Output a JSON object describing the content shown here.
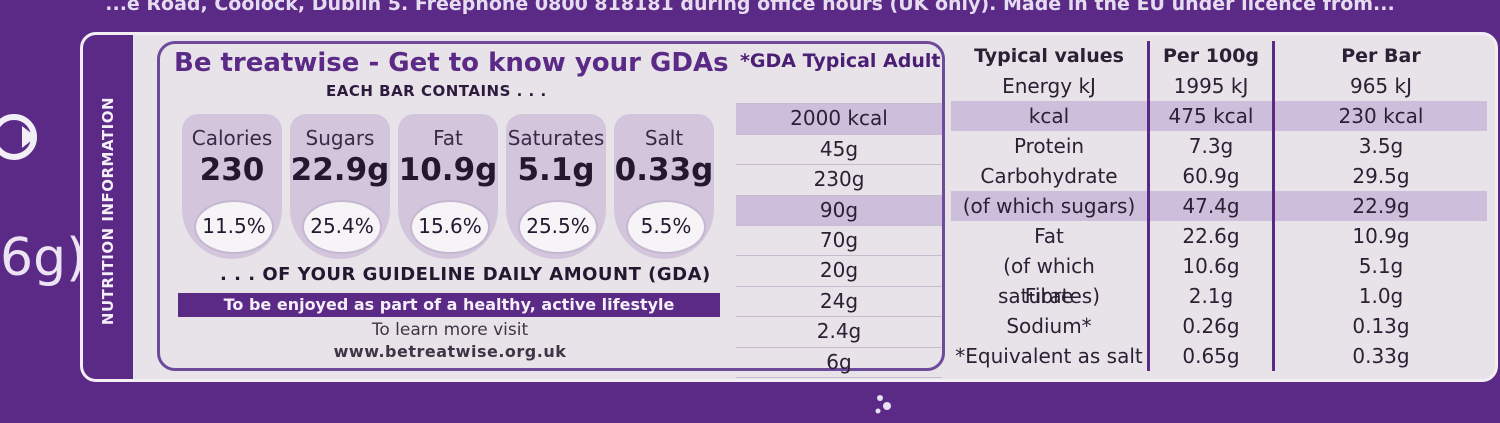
{
  "top_text": "...e Road, Coolock, Dublin 5. Freephone 0800 818181 during office hours (UK only). Made in the EU under licence from...",
  "left_weight": "6g)",
  "side_label": "NUTRITION INFORMATION",
  "gda": {
    "title": "Be treatwise - Get to know your GDAs",
    "header": "*GDA Typical Adult",
    "each_bar": "EACH BAR CONTAINS . . .",
    "drops": [
      {
        "label": "Calories",
        "value": "230",
        "pct": "11.5%"
      },
      {
        "label": "Sugars",
        "value": "22.9g",
        "pct": "25.4%"
      },
      {
        "label": "Fat",
        "value": "10.9g",
        "pct": "15.6%"
      },
      {
        "label": "Saturates",
        "value": "5.1g",
        "pct": "25.5%"
      },
      {
        "label": "Salt",
        "value": "0.33g",
        "pct": "5.5%"
      }
    ],
    "guideline": ". . . OF YOUR GUIDELINE DAILY AMOUNT (GDA)",
    "enjoy": "To be enjoyed as part of a healthy, active lifestyle",
    "learn": "To learn more visit",
    "website": "www.betreatwise.org.uk",
    "values": [
      "",
      "2000 kcal",
      "45g",
      "230g",
      "90g",
      "70g",
      "20g",
      "24g",
      "2.4g",
      "6g"
    ]
  },
  "nutrition": {
    "headers": [
      "Typical values",
      "Per 100g",
      "Per Bar"
    ],
    "rows": [
      [
        "Energy kJ",
        "1995 kJ",
        "965 kJ"
      ],
      [
        "kcal",
        "475 kcal",
        "230 kcal"
      ],
      [
        "Protein",
        "7.3g",
        "3.5g"
      ],
      [
        "Carbohydrate",
        "60.9g",
        "29.5g"
      ],
      [
        "(of which sugars)",
        "47.4g",
        "22.9g"
      ],
      [
        "Fat",
        "22.6g",
        "10.9g"
      ],
      [
        "(of which saturates)",
        "10.6g",
        "5.1g"
      ],
      [
        "Fibre",
        "2.1g",
        "1.0g"
      ],
      [
        "Sodium*",
        "0.26g",
        "0.13g"
      ],
      [
        "*Equivalent as salt",
        "0.65g",
        "0.33g"
      ]
    ]
  }
}
